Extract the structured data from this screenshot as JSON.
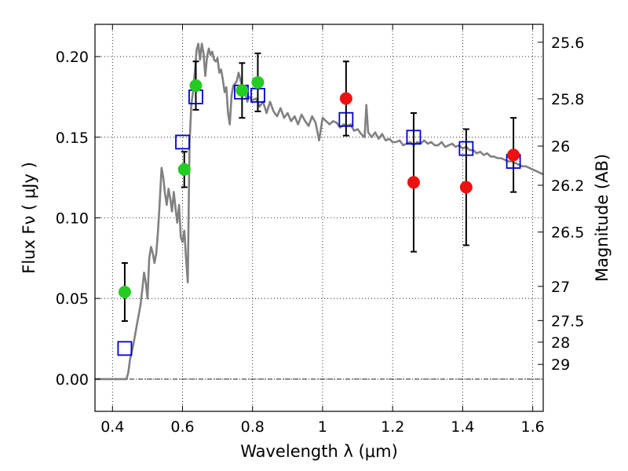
{
  "chart_data": {
    "type": "scatter",
    "xlabel": "Wavelength  λ (μm)",
    "ylabel": "Flux  Fν  ( μJy )",
    "ylabel_right": "Magnitude (AB)",
    "xlim": [
      0.35,
      1.63
    ],
    "ylim": [
      -0.02,
      0.22
    ],
    "grid": true,
    "x_ticks": [
      0.4,
      0.6,
      0.8,
      1.0,
      1.2,
      1.4,
      1.6
    ],
    "x_tick_labels": [
      "0.4",
      "0.6",
      "0.8",
      "1",
      "1.2",
      "1.4",
      "1.6"
    ],
    "y_ticks": [
      0.0,
      0.05,
      0.1,
      0.15,
      0.2
    ],
    "y_tick_labels": [
      "0.00",
      "0.05",
      "0.10",
      "0.15",
      "0.20"
    ],
    "mag_ticks": [
      {
        "label": "25.6",
        "flux": 0.2089
      },
      {
        "label": "25.8",
        "flux": 0.1738
      },
      {
        "label": "26",
        "flux": 0.1445
      },
      {
        "label": "26.2",
        "flux": 0.1202
      },
      {
        "label": "26.5",
        "flux": 0.0912
      },
      {
        "label": "27",
        "flux": 0.0575
      },
      {
        "label": "27.5",
        "flux": 0.0363
      },
      {
        "label": "28",
        "flux": 0.0229
      },
      {
        "label": "29",
        "flux": 0.0091
      }
    ],
    "series": [
      {
        "style": "model",
        "color": "#808080",
        "points": [
          [
            0.35,
            0.0
          ],
          [
            0.36,
            0.0
          ],
          [
            0.37,
            0.0
          ],
          [
            0.38,
            0.0
          ],
          [
            0.39,
            0.0
          ],
          [
            0.4,
            0.0
          ],
          [
            0.41,
            0.0
          ],
          [
            0.42,
            0.0
          ],
          [
            0.43,
            0.0
          ],
          [
            0.44,
            0.0
          ],
          [
            0.445,
            0.004
          ],
          [
            0.45,
            0.012
          ],
          [
            0.46,
            0.022
          ],
          [
            0.47,
            0.034
          ],
          [
            0.48,
            0.046
          ],
          [
            0.485,
            0.055
          ],
          [
            0.49,
            0.066
          ],
          [
            0.495,
            0.06
          ],
          [
            0.5,
            0.05
          ],
          [
            0.505,
            0.075
          ],
          [
            0.51,
            0.082
          ],
          [
            0.515,
            0.078
          ],
          [
            0.52,
            0.072
          ],
          [
            0.525,
            0.078
          ],
          [
            0.53,
            0.092
          ],
          [
            0.535,
            0.11
          ],
          [
            0.54,
            0.131
          ],
          [
            0.545,
            0.125
          ],
          [
            0.55,
            0.115
          ],
          [
            0.555,
            0.108
          ],
          [
            0.56,
            0.118
          ],
          [
            0.565,
            0.112
          ],
          [
            0.57,
            0.104
          ],
          [
            0.575,
            0.116
          ],
          [
            0.58,
            0.106
          ],
          [
            0.585,
            0.097
          ],
          [
            0.59,
            0.108
          ],
          [
            0.595,
            0.088
          ],
          [
            0.6,
            0.085
          ],
          [
            0.605,
            0.092
          ],
          [
            0.61,
            0.075
          ],
          [
            0.615,
            0.06
          ],
          [
            0.62,
            0.145
          ],
          [
            0.625,
            0.17
          ],
          [
            0.63,
            0.178
          ],
          [
            0.635,
            0.19
          ],
          [
            0.64,
            0.204
          ],
          [
            0.645,
            0.208
          ],
          [
            0.65,
            0.198
          ],
          [
            0.655,
            0.208
          ],
          [
            0.66,
            0.202
          ],
          [
            0.665,
            0.188
          ],
          [
            0.67,
            0.2
          ],
          [
            0.675,
            0.205
          ],
          [
            0.68,
            0.201
          ],
          [
            0.685,
            0.203
          ],
          [
            0.69,
            0.198
          ],
          [
            0.695,
            0.197
          ],
          [
            0.7,
            0.199
          ],
          [
            0.705,
            0.19
          ],
          [
            0.71,
            0.192
          ],
          [
            0.715,
            0.186
          ],
          [
            0.72,
            0.178
          ],
          [
            0.725,
            0.181
          ],
          [
            0.73,
            0.165
          ],
          [
            0.735,
            0.158
          ],
          [
            0.74,
            0.176
          ],
          [
            0.745,
            0.182
          ],
          [
            0.75,
            0.183
          ],
          [
            0.755,
            0.185
          ],
          [
            0.76,
            0.19
          ],
          [
            0.765,
            0.186
          ],
          [
            0.77,
            0.18
          ],
          [
            0.775,
            0.178
          ],
          [
            0.78,
            0.177
          ],
          [
            0.785,
            0.172
          ],
          [
            0.79,
            0.175
          ],
          [
            0.8,
            0.173
          ],
          [
            0.81,
            0.174
          ],
          [
            0.82,
            0.169
          ],
          [
            0.83,
            0.172
          ],
          [
            0.84,
            0.165
          ],
          [
            0.85,
            0.172
          ],
          [
            0.86,
            0.166
          ],
          [
            0.87,
            0.163
          ],
          [
            0.88,
            0.168
          ],
          [
            0.89,
            0.162
          ],
          [
            0.9,
            0.165
          ],
          [
            0.91,
            0.16
          ],
          [
            0.92,
            0.163
          ],
          [
            0.93,
            0.158
          ],
          [
            0.94,
            0.164
          ],
          [
            0.95,
            0.16
          ],
          [
            0.96,
            0.157
          ],
          [
            0.97,
            0.163
          ],
          [
            0.98,
            0.159
          ],
          [
            0.99,
            0.148
          ],
          [
            1.0,
            0.162
          ],
          [
            1.01,
            0.16
          ],
          [
            1.02,
            0.158
          ],
          [
            1.03,
            0.16
          ],
          [
            1.04,
            0.159
          ],
          [
            1.05,
            0.156
          ],
          [
            1.06,
            0.158
          ],
          [
            1.07,
            0.157
          ],
          [
            1.08,
            0.158
          ],
          [
            1.09,
            0.154
          ],
          [
            1.1,
            0.155
          ],
          [
            1.11,
            0.152
          ],
          [
            1.12,
            0.15
          ],
          [
            1.125,
            0.17
          ],
          [
            1.13,
            0.153
          ],
          [
            1.14,
            0.15
          ],
          [
            1.15,
            0.153
          ],
          [
            1.16,
            0.149
          ],
          [
            1.17,
            0.152
          ],
          [
            1.18,
            0.148
          ],
          [
            1.19,
            0.149
          ],
          [
            1.2,
            0.147
          ],
          [
            1.21,
            0.147
          ],
          [
            1.22,
            0.148
          ],
          [
            1.23,
            0.145
          ],
          [
            1.24,
            0.146
          ],
          [
            1.25,
            0.147
          ],
          [
            1.26,
            0.145
          ],
          [
            1.27,
            0.147
          ],
          [
            1.28,
            0.146
          ],
          [
            1.29,
            0.148
          ],
          [
            1.3,
            0.146
          ],
          [
            1.31,
            0.147
          ],
          [
            1.32,
            0.145
          ],
          [
            1.33,
            0.145
          ],
          [
            1.34,
            0.147
          ],
          [
            1.35,
            0.144
          ],
          [
            1.36,
            0.145
          ],
          [
            1.37,
            0.146
          ],
          [
            1.38,
            0.144
          ],
          [
            1.39,
            0.145
          ],
          [
            1.4,
            0.143
          ],
          [
            1.41,
            0.144
          ],
          [
            1.42,
            0.142
          ],
          [
            1.43,
            0.142
          ],
          [
            1.44,
            0.14
          ],
          [
            1.45,
            0.141
          ],
          [
            1.46,
            0.139
          ],
          [
            1.47,
            0.14
          ],
          [
            1.48,
            0.138
          ],
          [
            1.49,
            0.138
          ],
          [
            1.5,
            0.137
          ],
          [
            1.51,
            0.137
          ],
          [
            1.52,
            0.136
          ],
          [
            1.53,
            0.135
          ],
          [
            1.54,
            0.135
          ],
          [
            1.55,
            0.134
          ],
          [
            1.56,
            0.133
          ],
          [
            1.57,
            0.132
          ],
          [
            1.58,
            0.132
          ],
          [
            1.59,
            0.131
          ],
          [
            1.6,
            0.13
          ],
          [
            1.61,
            0.129
          ],
          [
            1.62,
            0.128
          ],
          [
            1.63,
            0.127
          ]
        ]
      },
      {
        "style": "open-square",
        "color": "#0000cc",
        "points": [
          [
            0.435,
            0.019
          ],
          [
            0.6,
            0.147
          ],
          [
            0.638,
            0.175
          ],
          [
            0.768,
            0.178
          ],
          [
            0.815,
            0.176
          ],
          [
            1.067,
            0.161
          ],
          [
            1.26,
            0.15
          ],
          [
            1.41,
            0.143
          ],
          [
            1.545,
            0.135
          ]
        ]
      },
      {
        "style": "filled-circle",
        "color": "#22cc22",
        "points": [
          {
            "x": 0.435,
            "y": 0.054,
            "err": 0.018
          },
          {
            "x": 0.605,
            "y": 0.13,
            "err": 0.011
          },
          {
            "x": 0.638,
            "y": 0.182,
            "err": 0.015
          },
          {
            "x": 0.77,
            "y": 0.179,
            "err": 0.017
          },
          {
            "x": 0.815,
            "y": 0.184,
            "err": 0.018
          }
        ]
      },
      {
        "style": "filled-circle",
        "color": "#ee1111",
        "points": [
          {
            "x": 1.067,
            "y": 0.174,
            "err": 0.023
          },
          {
            "x": 1.26,
            "y": 0.122,
            "err": 0.043
          },
          {
            "x": 1.41,
            "y": 0.119,
            "err": 0.036
          },
          {
            "x": 1.545,
            "y": 0.139,
            "err": 0.023
          }
        ]
      }
    ]
  }
}
